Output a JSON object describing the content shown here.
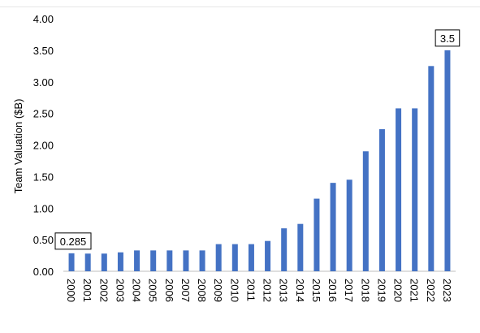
{
  "chart_data": {
    "type": "bar",
    "title": "",
    "xlabel": "",
    "ylabel": "Team Valuation ($B)",
    "ylim": [
      0,
      4
    ],
    "yticks": [
      "0.00",
      "0.50",
      "1.00",
      "1.50",
      "2.00",
      "2.50",
      "3.00",
      "3.50",
      "4.00"
    ],
    "grid": false,
    "legend": "none",
    "bar_color": "#4472C4",
    "categories": [
      "2000",
      "2001",
      "2002",
      "2003",
      "2004",
      "2005",
      "2006",
      "2007",
      "2008",
      "2009",
      "2010",
      "2011",
      "2012",
      "2013",
      "2014",
      "2015",
      "2016",
      "2017",
      "2018",
      "2019",
      "2020",
      "2021",
      "2022",
      "2023"
    ],
    "values": [
      0.285,
      0.28,
      0.28,
      0.3,
      0.33,
      0.33,
      0.33,
      0.33,
      0.33,
      0.43,
      0.43,
      0.43,
      0.48,
      0.68,
      0.75,
      1.15,
      1.4,
      1.45,
      1.9,
      2.25,
      2.58,
      2.58,
      3.25,
      3.5
    ],
    "annotations": [
      {
        "category": "2000",
        "text": "0.285"
      },
      {
        "category": "2023",
        "text": "3.5"
      }
    ]
  }
}
